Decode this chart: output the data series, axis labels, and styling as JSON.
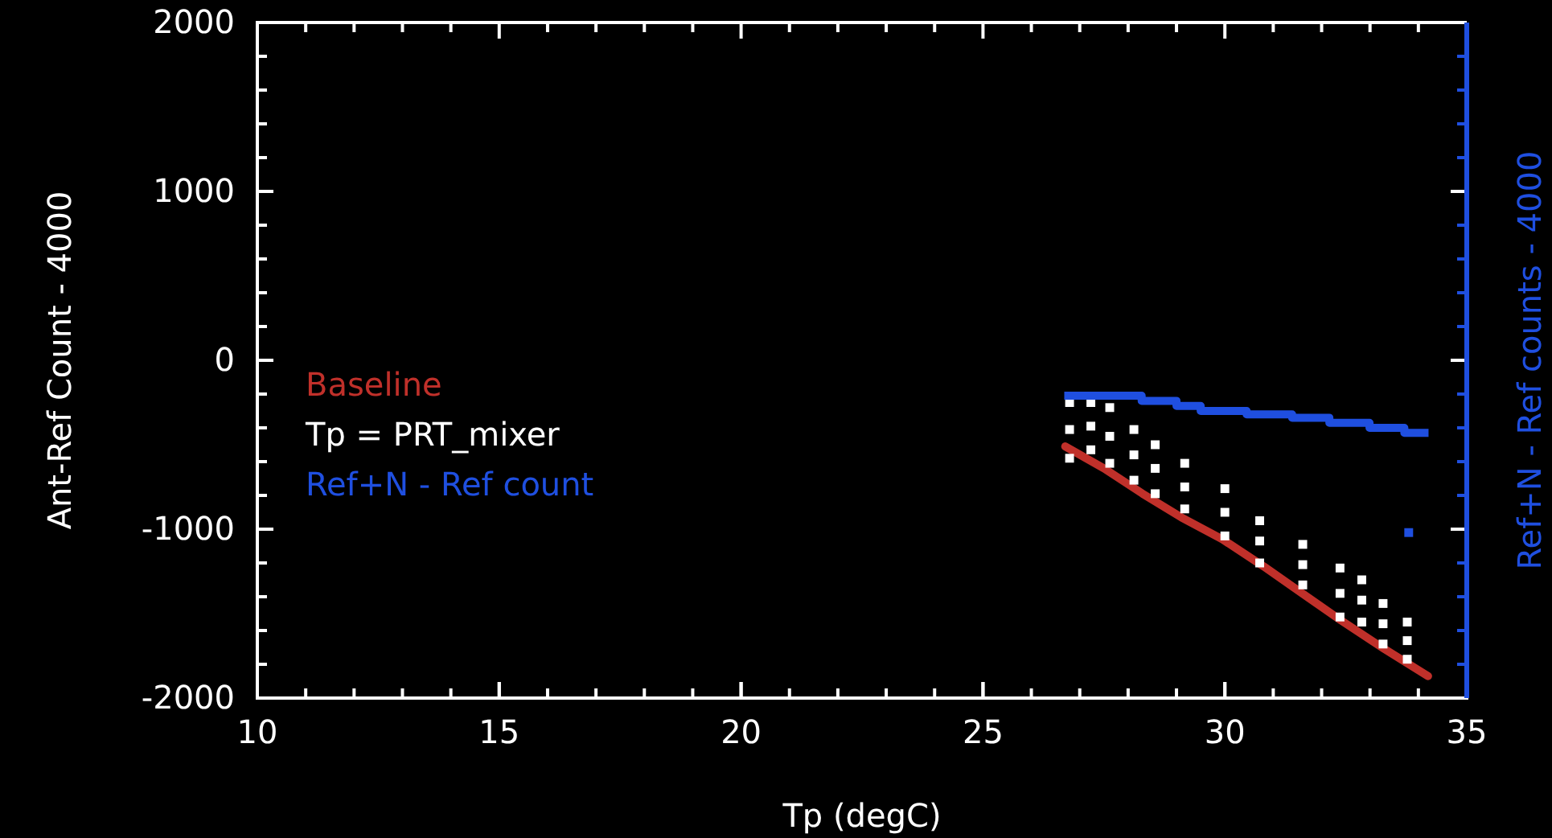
{
  "chart_data": {
    "type": "line",
    "xlabel": "Tp (degC)",
    "ylabel": "Ant-Ref Count - 4000",
    "y2label": "Ref+N - Ref counts - 4000",
    "xlim": [
      10,
      35
    ],
    "xticks": [
      10,
      15,
      20,
      25,
      30,
      35
    ],
    "ylim": [
      -2000,
      2000
    ],
    "yticks": [
      -2000,
      -1000,
      0,
      1000,
      2000
    ],
    "legend": "left",
    "series": [
      {
        "name": "Baseline",
        "color": "#c0302a",
        "x": [
          26.7,
          27.5,
          28.3,
          29.1,
          29.95,
          30.8,
          31.6,
          32.4,
          33.3,
          34.2
        ],
        "values": [
          -510,
          -640,
          -790,
          -930,
          -1060,
          -1220,
          -1380,
          -1540,
          -1710,
          -1870
        ]
      },
      {
        "name": "Tp = PRT_mixer",
        "type": "scatter",
        "marker": "square",
        "color": "#ffffff",
        "x": [
          26.79,
          26.79,
          26.79,
          27.23,
          27.23,
          27.23,
          27.62,
          27.62,
          27.62,
          28.12,
          28.12,
          28.12,
          28.56,
          28.56,
          28.56,
          29.17,
          29.17,
          29.17,
          30.0,
          30.0,
          30.0,
          30.72,
          30.72,
          30.72,
          31.61,
          31.61,
          31.61,
          32.38,
          32.38,
          32.38,
          32.83,
          32.83,
          32.83,
          33.27,
          33.27,
          33.27,
          33.77,
          33.77,
          33.77
        ],
        "values": [
          -250,
          -410,
          -580,
          -250,
          -390,
          -530,
          -280,
          -450,
          -610,
          -410,
          -560,
          -710,
          -500,
          -640,
          -790,
          -610,
          -750,
          -880,
          -760,
          -900,
          -1040,
          -950,
          -1070,
          -1200,
          -1090,
          -1210,
          -1330,
          -1230,
          -1380,
          -1520,
          -1300,
          -1420,
          -1550,
          -1440,
          -1560,
          -1680,
          -1550,
          -1660,
          -1770
        ]
      },
      {
        "name": "Ref+N - Ref count",
        "type": "step",
        "color": "#1f4fe0",
        "x": [
          26.68,
          28.28,
          29.0,
          29.5,
          30.45,
          31.39,
          32.16,
          32.99,
          33.71,
          34.21
        ],
        "values": [
          -210,
          -240,
          -270,
          -300,
          -320,
          -340,
          -370,
          -400,
          -430,
          -430
        ]
      },
      {
        "type": "scatter",
        "marker": "square",
        "color": "#1f4fe0",
        "x": [
          33.8
        ],
        "values": [
          -1020
        ]
      }
    ]
  }
}
